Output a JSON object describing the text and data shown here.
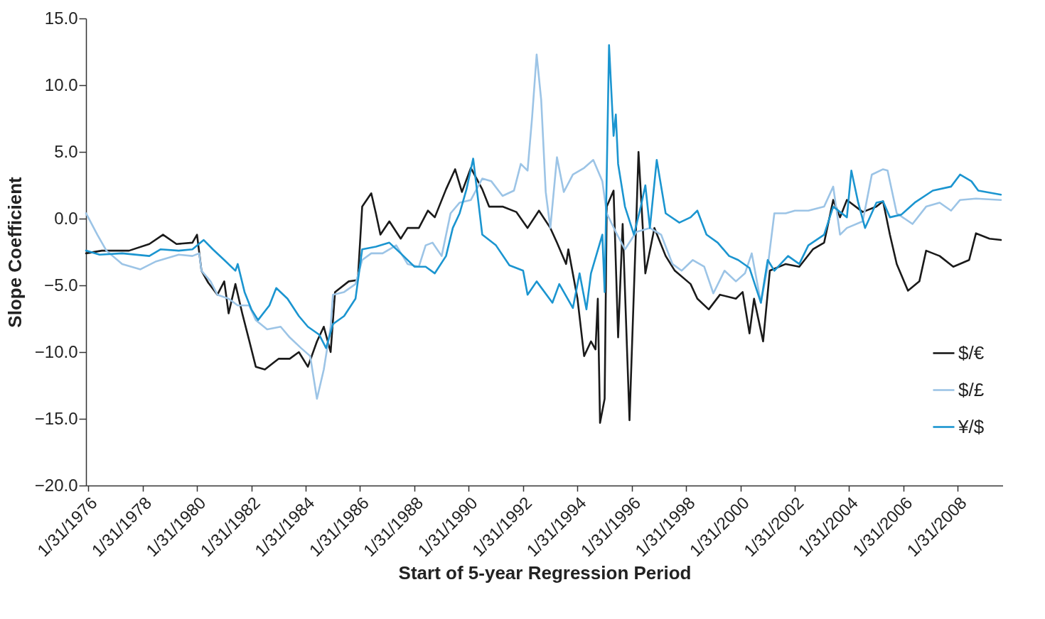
{
  "chart_data": {
    "type": "line",
    "xlabel": "Start of 5-year Regression Period",
    "ylabel": "Slope Coefficient",
    "xlim": [
      "1976-01-01",
      "2009-09-30"
    ],
    "xticks": [
      {
        "value": "1976-01-31",
        "label": "1/31/1976"
      },
      {
        "value": "1978-01-31",
        "label": "1/31/1978"
      },
      {
        "value": "1980-01-31",
        "label": "1/31/1980"
      },
      {
        "value": "1982-01-31",
        "label": "1/31/1982"
      },
      {
        "value": "1984-01-31",
        "label": "1/31/1984"
      },
      {
        "value": "1986-01-31",
        "label": "1/31/1986"
      },
      {
        "value": "1988-01-31",
        "label": "1/31/1988"
      },
      {
        "value": "1990-01-31",
        "label": "1/31/1990"
      },
      {
        "value": "1992-01-31",
        "label": "1/31/1992"
      },
      {
        "value": "1994-01-31",
        "label": "1/31/1994"
      },
      {
        "value": "1996-01-31",
        "label": "1/31/1996"
      },
      {
        "value": "1998-01-31",
        "label": "1/31/1998"
      },
      {
        "value": "2000-01-31",
        "label": "1/31/2000"
      },
      {
        "value": "2002-01-31",
        "label": "1/31/2002"
      },
      {
        "value": "2004-01-31",
        "label": "1/31/2004"
      },
      {
        "value": "2006-01-31",
        "label": "1/31/2006"
      },
      {
        "value": "2008-01-31",
        "label": "1/31/2008"
      }
    ],
    "ylim": [
      -20,
      15
    ],
    "yticks": [
      {
        "value": -20,
        "label": "−20.0"
      },
      {
        "value": -15,
        "label": "−15.0"
      },
      {
        "value": -10,
        "label": "−10.0"
      },
      {
        "value": -5,
        "label": "−5.0"
      },
      {
        "value": 0,
        "label": "0.0"
      },
      {
        "value": 5,
        "label": "5.0"
      },
      {
        "value": 10,
        "label": "10.0"
      },
      {
        "value": 15,
        "label": "15.0"
      }
    ],
    "grid": false,
    "legend": "right",
    "line_style": "solid",
    "series": [
      {
        "name": "$/€",
        "color": "#1a1a1a",
        "x": [
          "1976-01",
          "1976-08",
          "1977-08",
          "1978-05",
          "1978-11",
          "1979-05",
          "1979-12",
          "1980-02",
          "1980-04",
          "1980-07",
          "1980-11",
          "1981-02",
          "1981-04",
          "1981-07",
          "1981-10",
          "1982-01",
          "1982-04",
          "1982-08",
          "1983-02",
          "1983-07",
          "1983-11",
          "1984-03",
          "1984-07",
          "1984-10",
          "1985-01",
          "1985-03",
          "1985-09",
          "1986-01",
          "1986-03",
          "1986-07",
          "1986-09",
          "1986-11",
          "1987-03",
          "1987-08",
          "1987-11",
          "1988-04",
          "1988-08",
          "1988-11",
          "1989-04",
          "1989-08",
          "1989-11",
          "1990-03",
          "1990-08",
          "1990-11",
          "1991-05",
          "1991-11",
          "1992-04",
          "1992-09",
          "1993-02",
          "1993-05",
          "1993-09",
          "1993-10",
          "1994-02",
          "1994-05",
          "1994-08",
          "1994-10",
          "1994-11",
          "1994-12",
          "1995-02",
          "1995-03",
          "1995-06",
          "1995-08",
          "1995-10",
          "1996-01",
          "1996-04",
          "1996-05",
          "1996-08",
          "1996-12",
          "1997-05",
          "1997-09",
          "1998-04",
          "1998-07",
          "1998-12",
          "1999-05",
          "1999-12",
          "2000-03",
          "2000-06",
          "2000-08",
          "2000-12",
          "2001-03",
          "2001-10",
          "2002-04",
          "2002-10",
          "2003-03",
          "2003-07",
          "2003-10",
          "2004-01",
          "2004-08",
          "2005-02",
          "2005-05",
          "2005-08",
          "2005-11",
          "2006-04",
          "2006-09",
          "2006-12",
          "2007-06",
          "2007-12",
          "2008-07",
          "2008-10",
          "2009-04",
          "2009-09"
        ],
        "values": [
          -2.6,
          -2.4,
          -2.4,
          -1.9,
          -1.2,
          -1.9,
          -1.8,
          -1.2,
          -3.9,
          -4.8,
          -5.7,
          -4.7,
          -7.1,
          -4.9,
          -7.1,
          -9.1,
          -11.1,
          -11.3,
          -10.5,
          -10.5,
          -10.0,
          -11.1,
          -9.2,
          -8.1,
          -10.0,
          -5.5,
          -4.7,
          -4.6,
          0.9,
          1.9,
          0.4,
          -1.2,
          -0.2,
          -1.5,
          -0.7,
          -0.7,
          0.6,
          0.1,
          2.2,
          3.7,
          2.0,
          3.8,
          2.2,
          0.9,
          0.9,
          0.5,
          -0.7,
          0.6,
          -0.7,
          -1.8,
          -3.4,
          -2.3,
          -6.0,
          -10.3,
          -9.2,
          -9.8,
          -6.0,
          -15.3,
          -13.5,
          0.9,
          2.1,
          -8.9,
          -0.4,
          -15.1,
          -0.2,
          5.0,
          -4.1,
          -0.7,
          -2.8,
          -3.9,
          -4.9,
          -6.0,
          -6.8,
          -5.7,
          -6.0,
          -5.5,
          -8.6,
          -6.0,
          -9.2,
          -3.9,
          -3.4,
          -3.6,
          -2.3,
          -1.8,
          1.4,
          0.1,
          1.4,
          0.5,
          0.9,
          1.3,
          -1.2,
          -3.4,
          -5.4,
          -4.7,
          -2.4,
          -2.8,
          -3.6,
          -3.1,
          -1.1,
          -1.5,
          -1.6
        ]
      },
      {
        "name": "$/£",
        "color": "#9cc4e6",
        "x": [
          "1976-01",
          "1976-06",
          "1976-10",
          "1977-05",
          "1978-01",
          "1978-08",
          "1979-06",
          "1979-12",
          "1980-03",
          "1980-04",
          "1980-08",
          "1980-11",
          "1981-04",
          "1981-08",
          "1982-01",
          "1982-04",
          "1982-09",
          "1983-03",
          "1983-07",
          "1983-12",
          "1984-04",
          "1984-07",
          "1984-10",
          "1985-01",
          "1985-02",
          "1985-07",
          "1985-12",
          "1986-03",
          "1986-07",
          "1986-12",
          "1987-06",
          "1987-11",
          "1988-04",
          "1988-07",
          "1988-10",
          "1989-02",
          "1989-06",
          "1989-10",
          "1990-03",
          "1990-08",
          "1990-12",
          "1991-05",
          "1991-10",
          "1992-01",
          "1992-04",
          "1992-06",
          "1992-08",
          "1992-10",
          "1992-12",
          "1993-02",
          "1993-05",
          "1993-08",
          "1993-12",
          "1994-05",
          "1994-09",
          "1995-01",
          "1995-03",
          "1995-07",
          "1995-11",
          "1996-04",
          "1996-10",
          "1997-03",
          "1997-08",
          "1997-12",
          "1998-05",
          "1998-10",
          "1999-02",
          "1999-07",
          "1999-12",
          "2000-04",
          "2000-07",
          "2000-11",
          "2001-02",
          "2001-05",
          "2001-10",
          "2002-02",
          "2002-08",
          "2003-03",
          "2003-07",
          "2003-10",
          "2004-01",
          "2004-08",
          "2004-12",
          "2005-05",
          "2005-07",
          "2005-11",
          "2006-06",
          "2006-12",
          "2007-06",
          "2007-11",
          "2008-03",
          "2008-10",
          "2009-09"
        ],
        "values": [
          0.4,
          -1.2,
          -2.4,
          -3.4,
          -3.8,
          -3.2,
          -2.7,
          -2.8,
          -2.6,
          -3.9,
          -4.7,
          -5.7,
          -6.0,
          -6.5,
          -6.5,
          -7.6,
          -8.3,
          -8.1,
          -8.9,
          -9.7,
          -10.3,
          -13.5,
          -11.3,
          -8.1,
          -5.7,
          -5.5,
          -4.9,
          -3.1,
          -2.6,
          -2.6,
          -2.0,
          -3.4,
          -3.6,
          -2.0,
          -1.8,
          -2.8,
          0.4,
          1.2,
          1.4,
          3.0,
          2.8,
          1.7,
          2.1,
          4.1,
          3.6,
          7.6,
          12.3,
          8.9,
          2.0,
          -0.7,
          4.6,
          2.0,
          3.3,
          3.8,
          4.4,
          2.8,
          0.4,
          -1.0,
          -2.3,
          -1.0,
          -0.7,
          -1.2,
          -3.4,
          -3.9,
          -3.1,
          -3.6,
          -5.6,
          -3.9,
          -4.7,
          -4.1,
          -2.6,
          -6.3,
          -3.6,
          0.4,
          0.4,
          0.6,
          0.6,
          0.9,
          2.4,
          -1.2,
          -0.7,
          -0.2,
          3.3,
          3.7,
          3.6,
          0.4,
          -0.4,
          0.9,
          1.2,
          0.6,
          1.4,
          1.5,
          1.4
        ]
      },
      {
        "name": "¥/$",
        "color": "#1b95d0",
        "x": [
          "1976-01",
          "1976-07",
          "1977-05",
          "1978-05",
          "1978-10",
          "1979-06",
          "1979-12",
          "1980-05",
          "1980-09",
          "1981-02",
          "1981-07",
          "1981-08",
          "1981-11",
          "1982-02",
          "1982-05",
          "1982-10",
          "1983-01",
          "1983-06",
          "1983-11",
          "1984-03",
          "1984-08",
          "1984-11",
          "1985-02",
          "1985-07",
          "1985-12",
          "1986-03",
          "1986-09",
          "1987-03",
          "1987-08",
          "1988-02",
          "1988-07",
          "1988-11",
          "1989-04",
          "1989-07",
          "1989-10",
          "1990-01",
          "1990-04",
          "1990-08",
          "1991-02",
          "1991-08",
          "1992-02",
          "1992-04",
          "1992-08",
          "1993-03",
          "1993-06",
          "1993-12",
          "1994-03",
          "1994-06",
          "1994-08",
          "1995-01",
          "1995-02",
          "1995-04",
          "1995-06",
          "1995-07",
          "1995-08",
          "1995-11",
          "1996-03",
          "1996-06",
          "1996-08",
          "1996-10",
          "1997-01",
          "1997-05",
          "1997-11",
          "1998-04",
          "1998-07",
          "1998-11",
          "1999-04",
          "1999-09",
          "2000-01",
          "2000-06",
          "2000-11",
          "2001-02",
          "2001-05",
          "2001-11",
          "2002-04",
          "2002-08",
          "2003-03",
          "2003-07",
          "2004-01",
          "2004-03",
          "2004-06",
          "2004-09",
          "2005-02",
          "2005-05",
          "2005-08",
          "2006-01",
          "2006-07",
          "2007-03",
          "2007-11",
          "2008-03",
          "2008-08",
          "2008-11",
          "2009-09"
        ],
        "values": [
          -2.4,
          -2.7,
          -2.6,
          -2.8,
          -2.3,
          -2.4,
          -2.3,
          -1.6,
          -2.3,
          -3.1,
          -3.9,
          -3.4,
          -5.5,
          -6.8,
          -7.6,
          -6.5,
          -5.2,
          -6.0,
          -7.3,
          -8.1,
          -8.7,
          -9.7,
          -7.9,
          -7.3,
          -6.0,
          -2.3,
          -2.1,
          -1.8,
          -2.6,
          -3.6,
          -3.6,
          -4.1,
          -2.8,
          -0.7,
          0.4,
          2.2,
          4.5,
          -1.2,
          -2.0,
          -3.5,
          -3.9,
          -5.7,
          -4.7,
          -6.3,
          -4.9,
          -6.7,
          -4.1,
          -6.8,
          -4.1,
          -1.2,
          -5.5,
          13.0,
          6.2,
          7.8,
          4.1,
          0.9,
          -1.2,
          0.9,
          2.5,
          -0.7,
          4.4,
          0.4,
          -0.3,
          0.1,
          0.6,
          -1.2,
          -1.8,
          -2.8,
          -3.1,
          -3.7,
          -6.3,
          -3.1,
          -3.9,
          -2.8,
          -3.4,
          -2.0,
          -1.2,
          0.9,
          0.1,
          3.6,
          1.2,
          -0.7,
          1.2,
          1.3,
          0.1,
          0.3,
          1.2,
          2.1,
          2.4,
          3.3,
          2.8,
          2.1,
          1.8
        ]
      }
    ]
  }
}
